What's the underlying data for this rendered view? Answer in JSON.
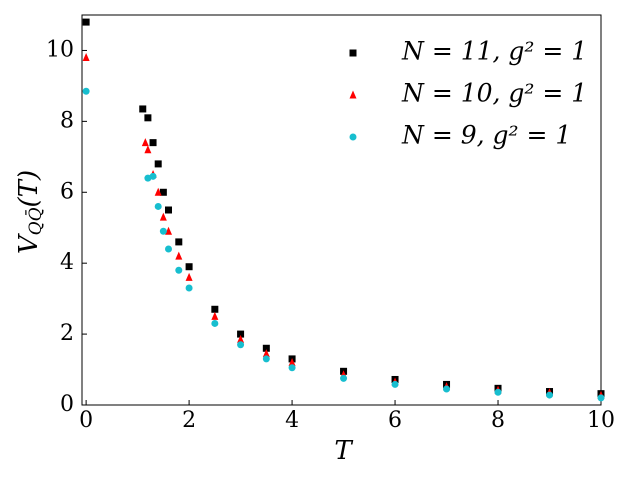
{
  "chart_data": {
    "type": "scatter",
    "xlabel": "T",
    "ylabel": {
      "main": "V",
      "sub": "QQ̄",
      "tail": "(T)"
    },
    "xlim": [
      -0.08,
      10
    ],
    "ylim": [
      0,
      11
    ],
    "xticks": [
      0,
      2,
      4,
      6,
      8,
      10
    ],
    "yticks": [
      0,
      2,
      4,
      6,
      8,
      10
    ],
    "legend": "upper right",
    "series": [
      {
        "name": "N = 11, g² = 1",
        "color": "#000000",
        "marker": "square",
        "x": [
          0,
          1.1,
          1.2,
          1.3,
          1.4,
          1.5,
          1.6,
          1.8,
          2,
          2.5,
          3,
          3.5,
          4,
          5,
          6,
          7,
          8,
          9,
          10
        ],
        "values": [
          10.8,
          8.35,
          8.1,
          7.4,
          6.8,
          6.0,
          5.5,
          4.6,
          3.9,
          2.7,
          2.0,
          1.6,
          1.3,
          0.95,
          0.72,
          0.58,
          0.47,
          0.38,
          0.32
        ]
      },
      {
        "name": "N = 10, g² = 1",
        "color": "#ff0000",
        "marker": "triangle",
        "x": [
          0,
          1.15,
          1.2,
          1.3,
          1.4,
          1.5,
          1.6,
          1.8,
          2,
          2.5,
          3,
          3.5,
          4,
          5,
          6,
          7,
          8,
          9,
          10
        ],
        "values": [
          9.8,
          7.4,
          7.2,
          6.5,
          6.0,
          5.3,
          4.9,
          4.2,
          3.6,
          2.5,
          1.85,
          1.45,
          1.2,
          0.85,
          0.65,
          0.52,
          0.42,
          0.35,
          0.27
        ]
      },
      {
        "name": "N = 9, g² = 1",
        "color": "#17becf",
        "marker": "circle",
        "x": [
          0,
          1.2,
          1.3,
          1.4,
          1.5,
          1.6,
          1.8,
          2,
          2.5,
          3,
          3.5,
          4,
          5,
          6,
          7,
          8,
          9,
          10
        ],
        "values": [
          8.85,
          6.4,
          6.45,
          5.6,
          4.9,
          4.4,
          3.8,
          3.3,
          2.3,
          1.7,
          1.3,
          1.05,
          0.75,
          0.58,
          0.45,
          0.36,
          0.28,
          0.2
        ]
      }
    ]
  }
}
